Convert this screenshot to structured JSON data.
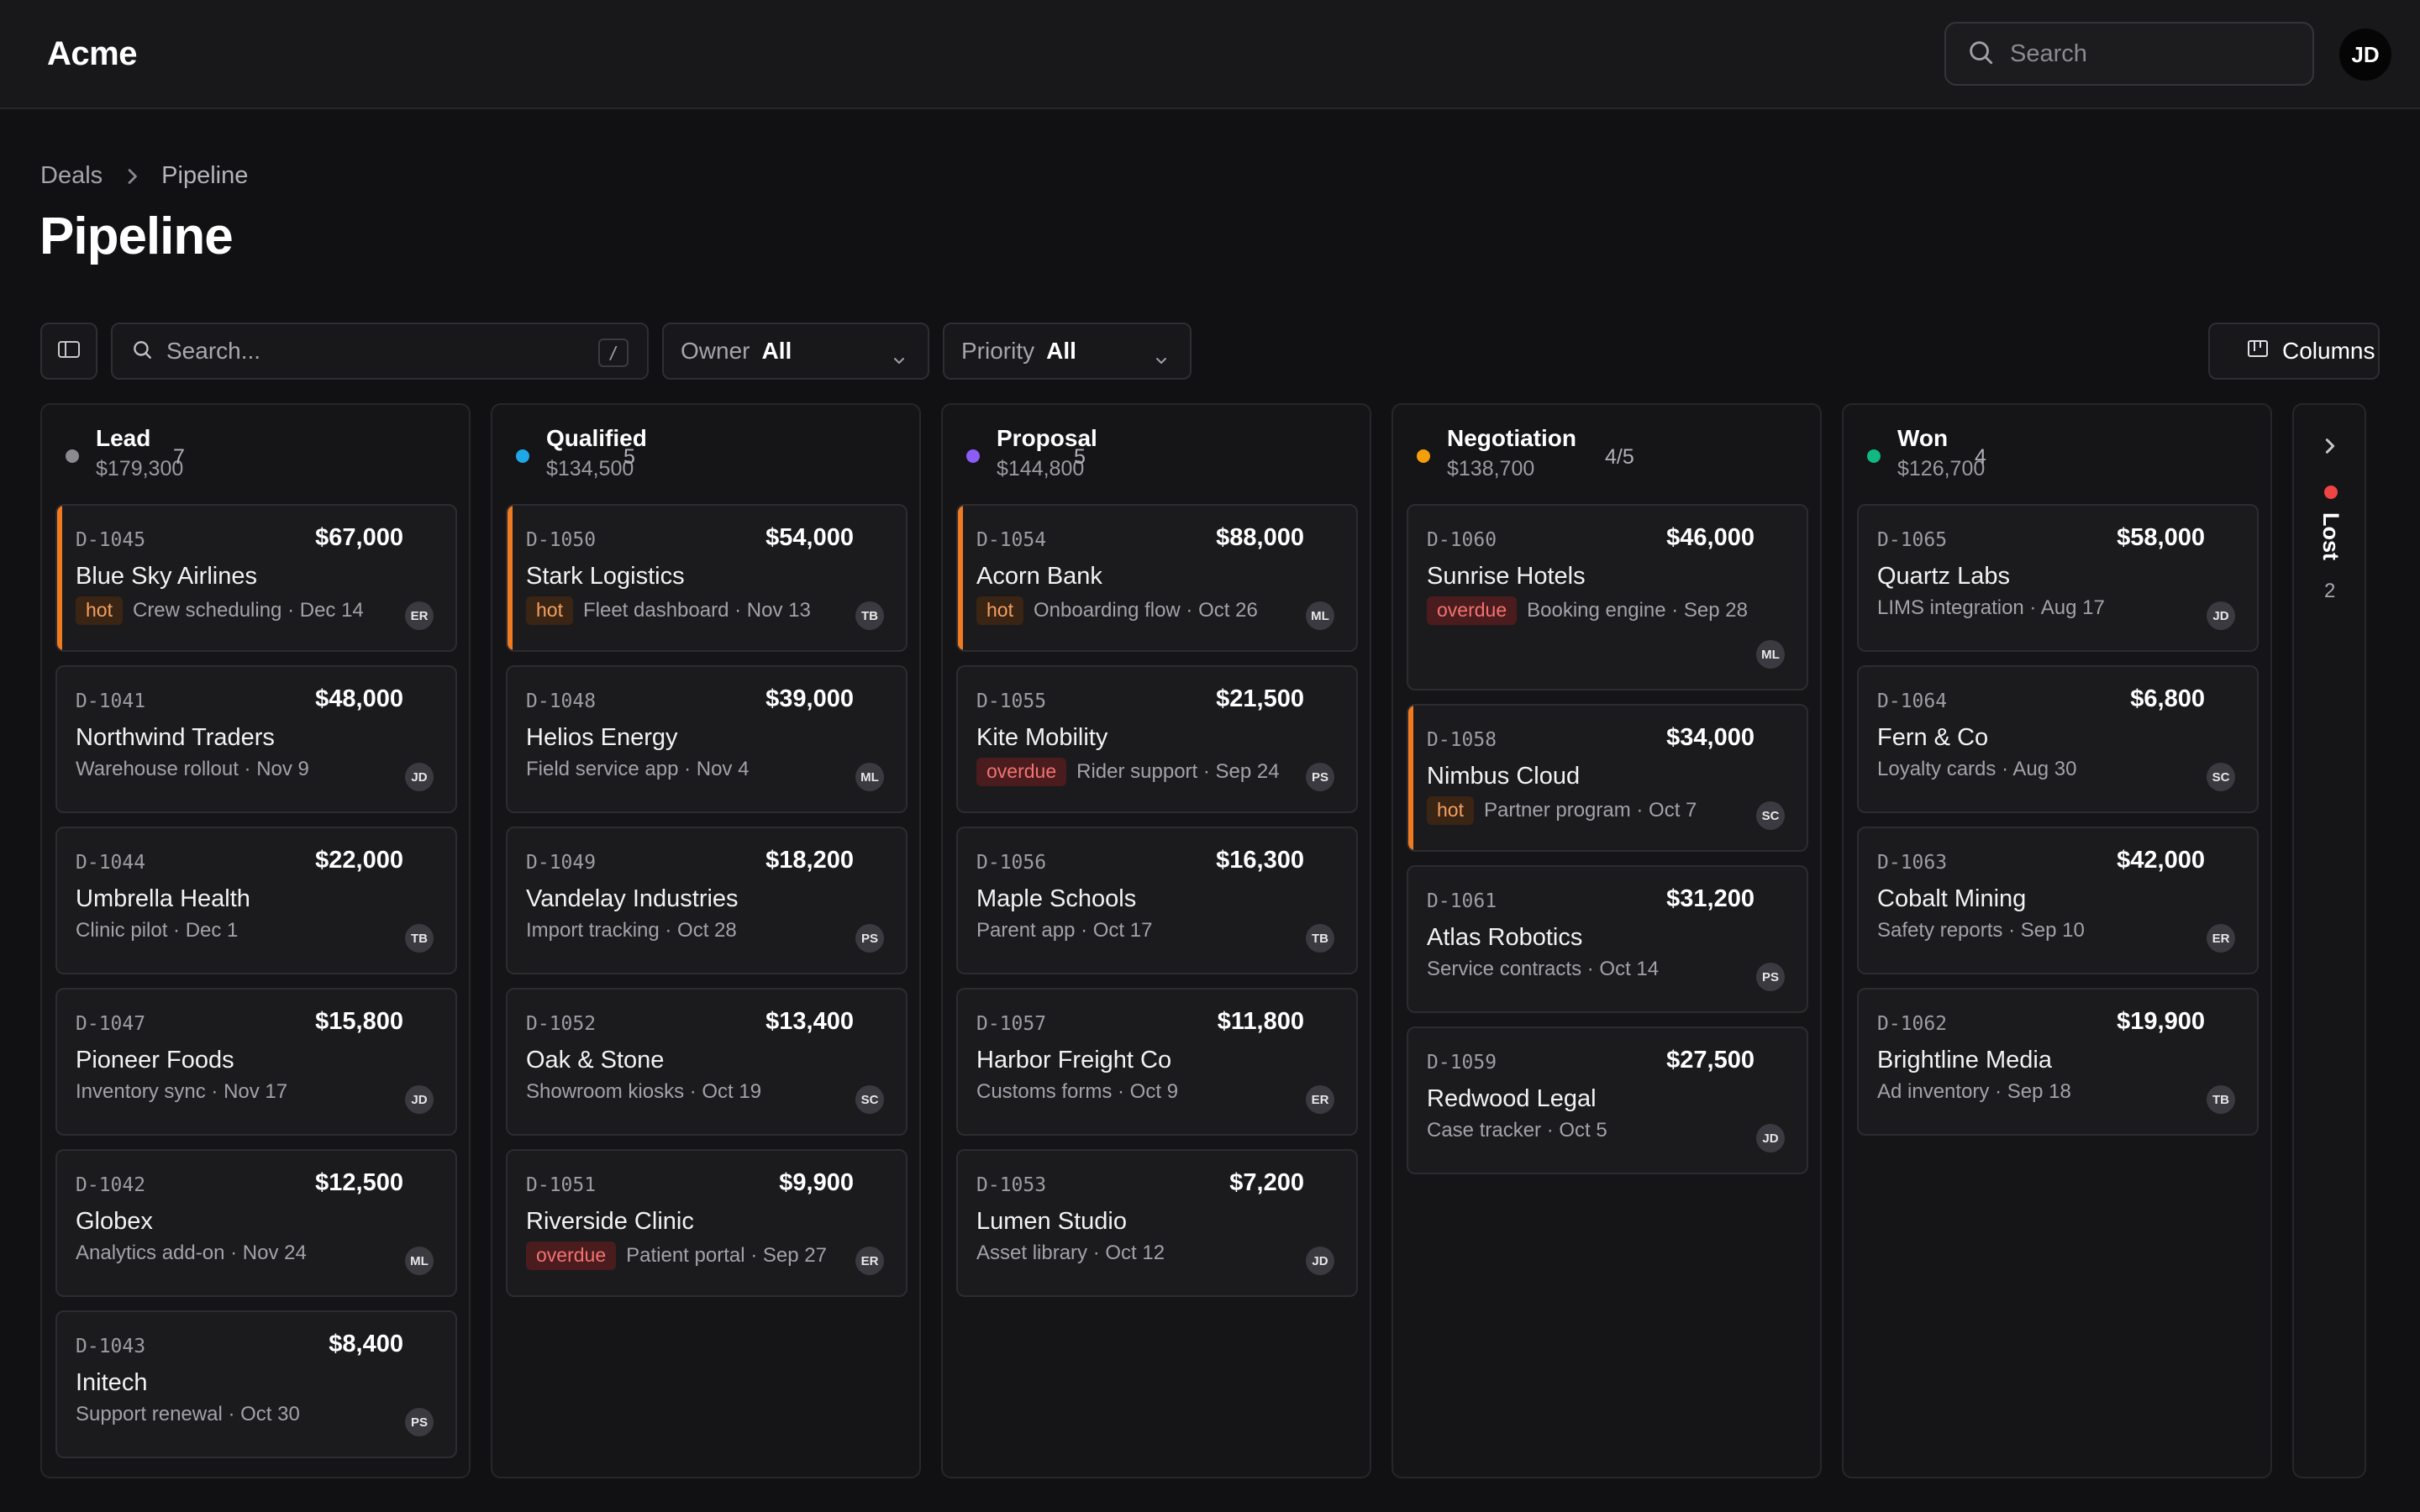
{
  "app": {
    "brand": "Acme",
    "search_placeholder": "Search",
    "user_initials": "JD"
  },
  "breadcrumb": {
    "items": [
      "Deals",
      "Pipeline"
    ]
  },
  "page": {
    "title": "Pipeline"
  },
  "toolbar": {
    "search_placeholder": "Search...",
    "search_shortcut": "/",
    "owner_label": "Owner",
    "owner_value": "All",
    "priority_label": "Priority",
    "priority_value": "All",
    "columns_label": "Columns"
  },
  "colors": {
    "hot_accent": "#f07a1f"
  },
  "columns": [
    {
      "name": "Lead",
      "total": "$179,300",
      "count": "7",
      "color": "#8a8a8f",
      "cards": [
        {
          "id": "D-1045",
          "amount": "$67,000",
          "name": "Blue Sky Airlines",
          "badge": "hot",
          "meta": "Crew scheduling · Dec 14",
          "owner": "ER"
        },
        {
          "id": "D-1041",
          "amount": "$48,000",
          "name": "Northwind Traders",
          "badge": "",
          "meta": "Warehouse rollout · Nov 9",
          "owner": "JD"
        },
        {
          "id": "D-1044",
          "amount": "$22,000",
          "name": "Umbrella Health",
          "badge": "",
          "meta": "Clinic pilot · Dec 1",
          "owner": "TB"
        },
        {
          "id": "D-1047",
          "amount": "$15,800",
          "name": "Pioneer Foods",
          "badge": "",
          "meta": "Inventory sync · Nov 17",
          "owner": "JD"
        },
        {
          "id": "D-1042",
          "amount": "$12,500",
          "name": "Globex",
          "badge": "",
          "meta": "Analytics add-on · Nov 24",
          "owner": "ML"
        },
        {
          "id": "D-1043",
          "amount": "$8,400",
          "name": "Initech",
          "badge": "",
          "meta": "Support renewal · Oct 30",
          "owner": "PS"
        }
      ]
    },
    {
      "name": "Qualified",
      "total": "$134,500",
      "count": "5",
      "color": "#1fa8e8",
      "cards": [
        {
          "id": "D-1050",
          "amount": "$54,000",
          "name": "Stark Logistics",
          "badge": "hot",
          "meta": "Fleet dashboard · Nov 13",
          "owner": "TB"
        },
        {
          "id": "D-1048",
          "amount": "$39,000",
          "name": "Helios Energy",
          "badge": "",
          "meta": "Field service app · Nov 4",
          "owner": "ML"
        },
        {
          "id": "D-1049",
          "amount": "$18,200",
          "name": "Vandelay Industries",
          "badge": "",
          "meta": "Import tracking · Oct 28",
          "owner": "PS"
        },
        {
          "id": "D-1052",
          "amount": "$13,400",
          "name": "Oak & Stone",
          "badge": "",
          "meta": "Showroom kiosks · Oct 19",
          "owner": "SC"
        },
        {
          "id": "D-1051",
          "amount": "$9,900",
          "name": "Riverside Clinic",
          "badge": "overdue",
          "meta": "Patient portal · Sep 27",
          "owner": "ER"
        }
      ]
    },
    {
      "name": "Proposal",
      "total": "$144,800",
      "count": "5",
      "color": "#8b5cf6",
      "cards": [
        {
          "id": "D-1054",
          "amount": "$88,000",
          "name": "Acorn Bank",
          "badge": "hot",
          "meta": "Onboarding flow · Oct 26",
          "owner": "ML"
        },
        {
          "id": "D-1055",
          "amount": "$21,500",
          "name": "Kite Mobility",
          "badge": "overdue",
          "meta": "Rider support · Sep 24",
          "owner": "PS"
        },
        {
          "id": "D-1056",
          "amount": "$16,300",
          "name": "Maple Schools",
          "badge": "",
          "meta": "Parent app · Oct 17",
          "owner": "TB"
        },
        {
          "id": "D-1057",
          "amount": "$11,800",
          "name": "Harbor Freight Co",
          "badge": "",
          "meta": "Customs forms · Oct 9",
          "owner": "ER"
        },
        {
          "id": "D-1053",
          "amount": "$7,200",
          "name": "Lumen Studio",
          "badge": "",
          "meta": "Asset library · Oct 12",
          "owner": "JD"
        }
      ]
    },
    {
      "name": "Negotiation",
      "total": "$138,700",
      "count": "4/5",
      "color": "#f59e0b",
      "cards": [
        {
          "id": "D-1060",
          "amount": "$46,000",
          "name": "Sunrise Hotels",
          "badge": "overdue",
          "meta": "Booking engine · Sep 28",
          "owner": "ML"
        },
        {
          "id": "D-1058",
          "amount": "$34,000",
          "name": "Nimbus Cloud",
          "badge": "hot",
          "meta": "Partner program · Oct 7",
          "owner": "SC"
        },
        {
          "id": "D-1061",
          "amount": "$31,200",
          "name": "Atlas Robotics",
          "badge": "",
          "meta": "Service contracts · Oct 14",
          "owner": "PS"
        },
        {
          "id": "D-1059",
          "amount": "$27,500",
          "name": "Redwood Legal",
          "badge": "",
          "meta": "Case tracker · Oct 5",
          "owner": "JD"
        }
      ]
    },
    {
      "name": "Won",
      "total": "$126,700",
      "count": "4",
      "color": "#10b981",
      "cards": [
        {
          "id": "D-1065",
          "amount": "$58,000",
          "name": "Quartz Labs",
          "badge": "",
          "meta": "LIMS integration · Aug 17",
          "owner": "JD"
        },
        {
          "id": "D-1064",
          "amount": "$6,800",
          "name": "Fern & Co",
          "badge": "",
          "meta": "Loyalty cards · Aug 30",
          "owner": "SC"
        },
        {
          "id": "D-1063",
          "amount": "$42,000",
          "name": "Cobalt Mining",
          "badge": "",
          "meta": "Safety reports · Sep 10",
          "owner": "ER"
        },
        {
          "id": "D-1062",
          "amount": "$19,900",
          "name": "Brightline Media",
          "badge": "",
          "meta": "Ad inventory · Sep 18",
          "owner": "TB"
        }
      ]
    }
  ],
  "lost": {
    "name": "Lost",
    "count": "2",
    "color": "#ef4444"
  }
}
